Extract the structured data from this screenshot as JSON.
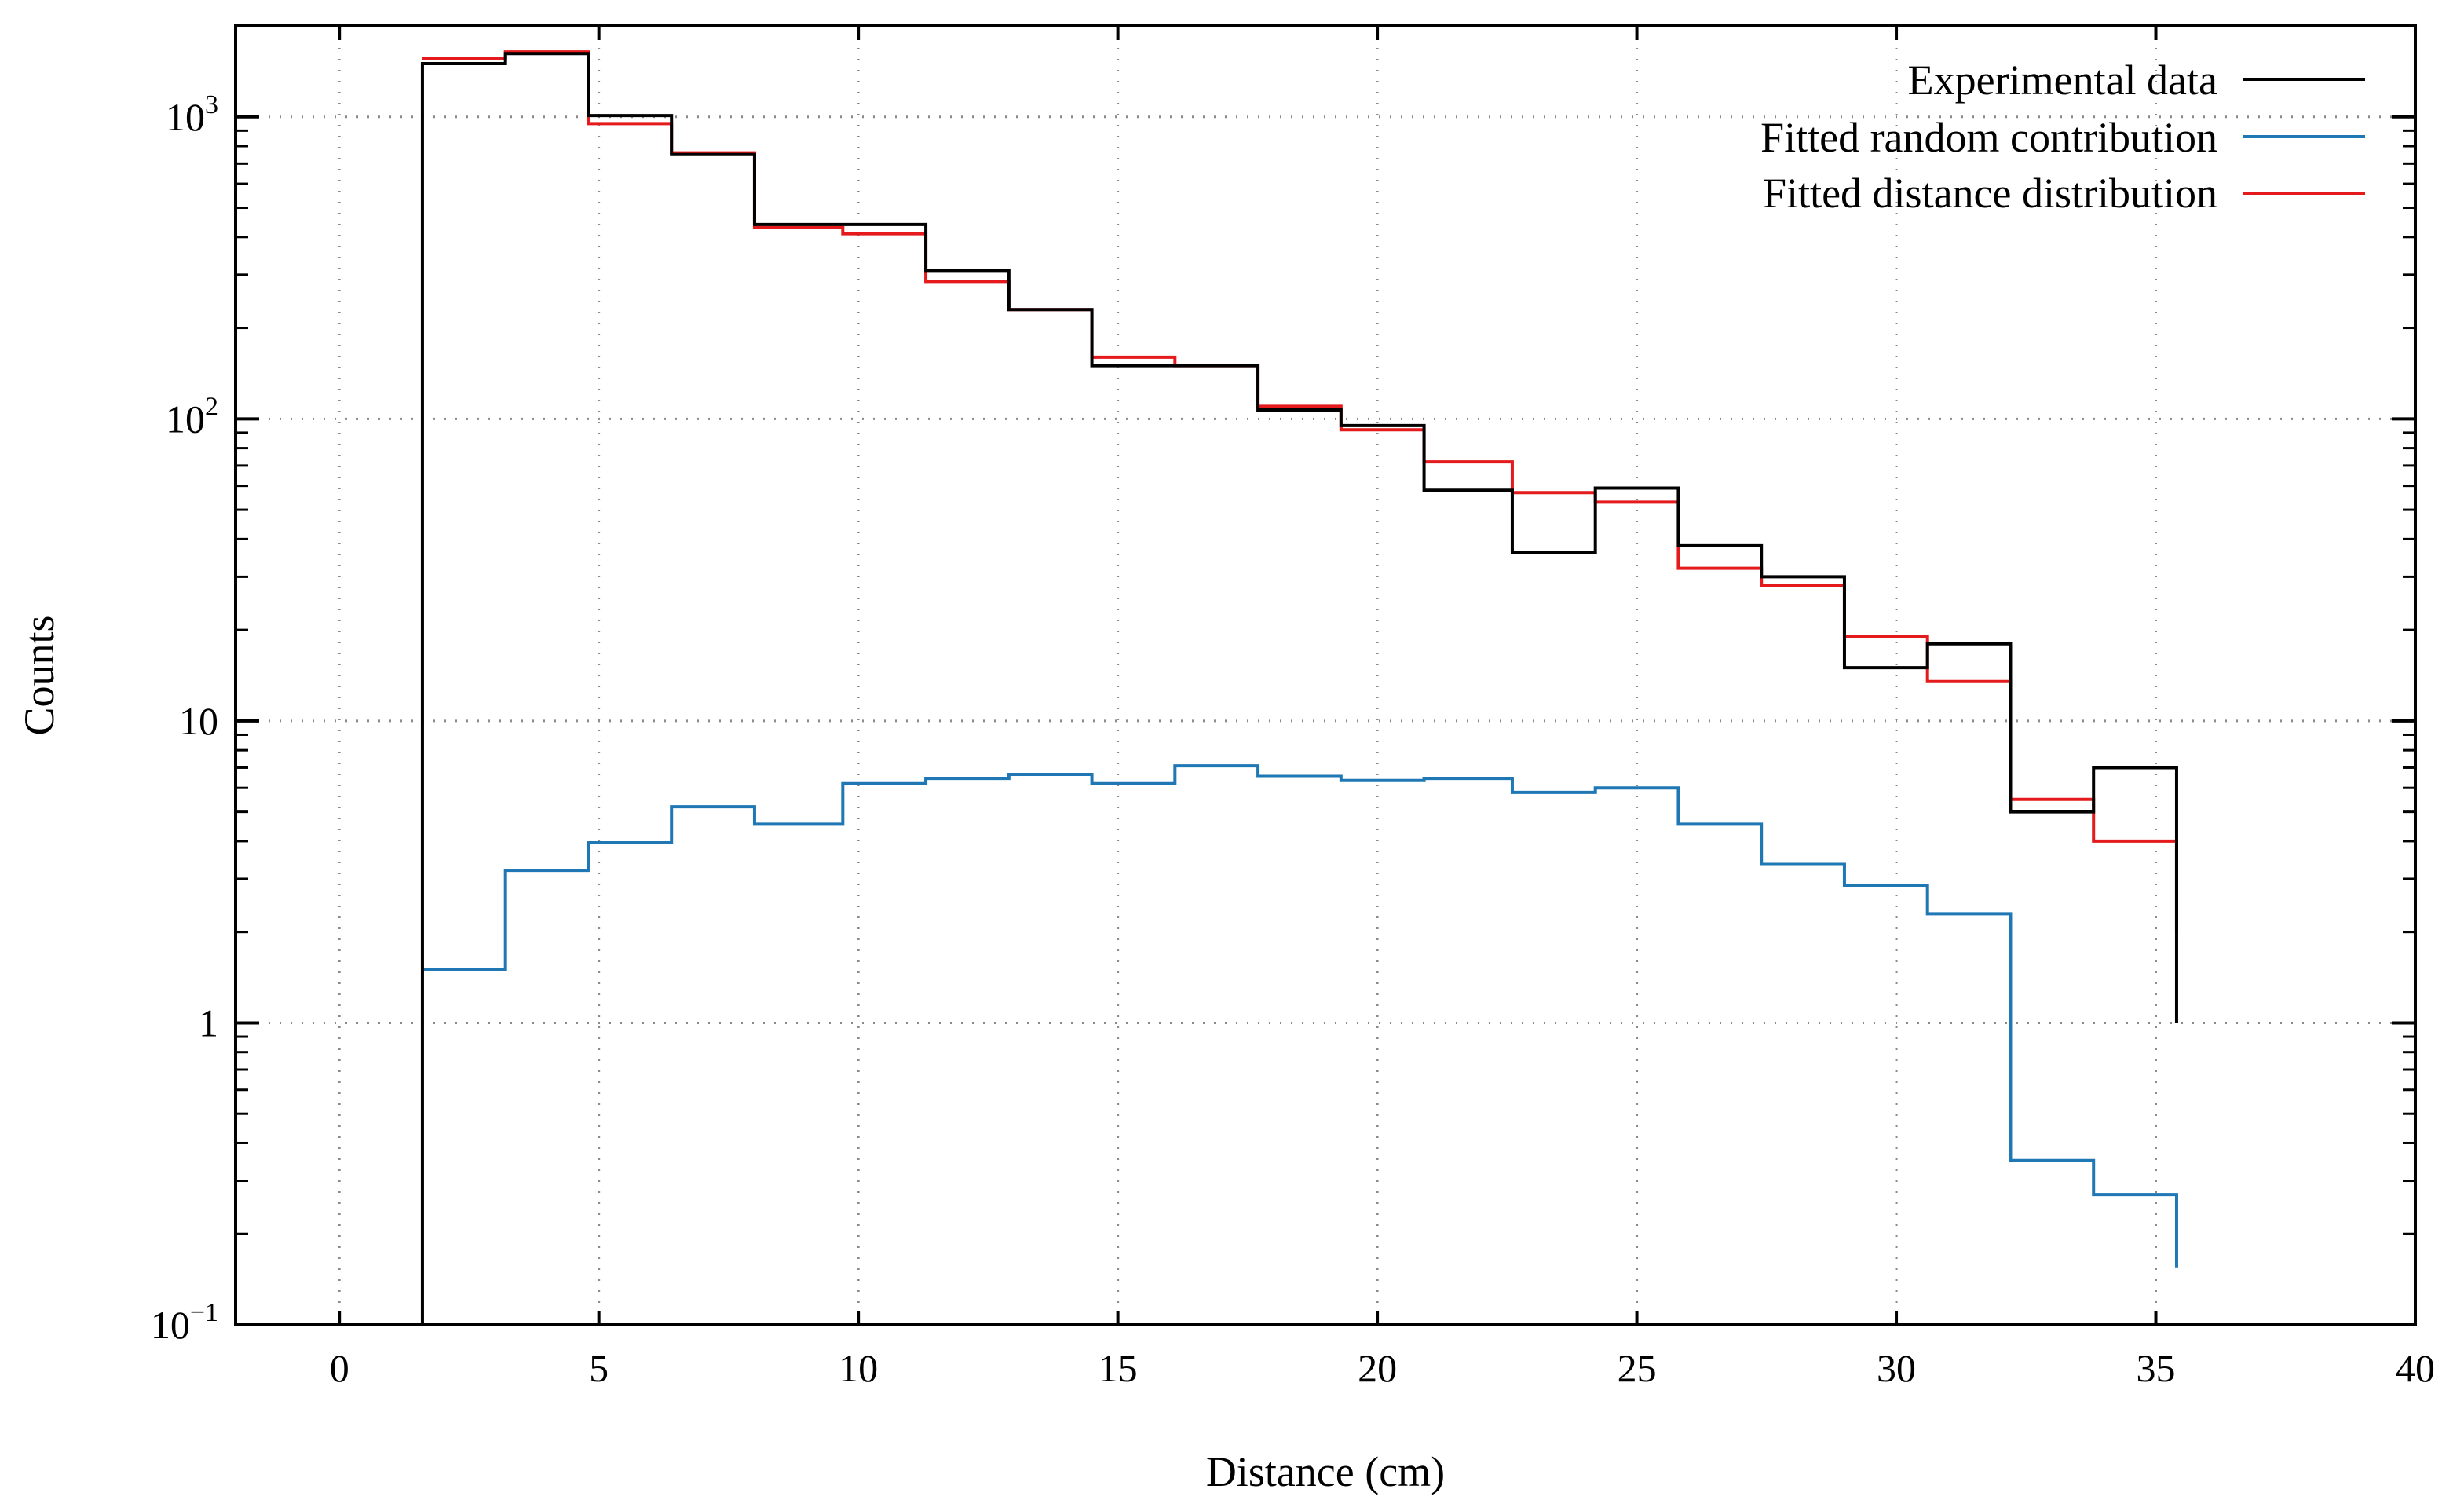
{
  "chart_data": {
    "type": "line",
    "step": true,
    "xlabel": "Distance (cm)",
    "ylabel": "Counts",
    "xscale": "linear",
    "yscale": "log",
    "xlim": [
      -2,
      40
    ],
    "ylim": [
      0.1,
      2000
    ],
    "xticks": [
      0,
      5,
      10,
      15,
      20,
      25,
      30,
      35,
      40
    ],
    "xtick_labels": [
      "0",
      "5",
      "10",
      "15",
      "20",
      "25",
      "30",
      "35",
      "40"
    ],
    "yticks": [
      0.1,
      1,
      10,
      100,
      1000
    ],
    "ytick_labels": [
      {
        "base": "10",
        "sup": "−1"
      },
      {
        "base": "1",
        "sup": ""
      },
      {
        "base": "10",
        "sup": ""
      },
      {
        "base": "10",
        "sup": "2"
      },
      {
        "base": "10",
        "sup": "3"
      }
    ],
    "grid": true,
    "legend_position": "top-right",
    "bin_edges": [
      1.6,
      3.2,
      4.8,
      6.4,
      8.0,
      9.7,
      11.3,
      12.9,
      14.5,
      16.1,
      17.7,
      19.3,
      20.9,
      22.6,
      24.2,
      25.8,
      27.4,
      29.0,
      30.6,
      32.2,
      33.8,
      35.4
    ],
    "series": [
      {
        "name": "Experimental data",
        "color": "#000000",
        "start_value": 0.1,
        "end_value": 1,
        "values": [
          1500,
          1620,
          1010,
          750,
          440,
          440,
          310,
          230,
          150,
          150,
          107,
          95,
          58,
          36,
          59,
          38,
          30,
          15,
          18,
          5,
          7
        ]
      },
      {
        "name": "Fitted random contribution",
        "color": "#1f77b4",
        "start_value": null,
        "end_value": 0.155,
        "values": [
          1.5,
          3.2,
          3.95,
          5.2,
          4.55,
          6.2,
          6.45,
          6.65,
          6.2,
          7.1,
          6.55,
          6.35,
          6.45,
          5.8,
          6.0,
          4.55,
          3.35,
          2.85,
          2.3,
          0.35,
          0.27
        ]
      },
      {
        "name": "Fitted distance distribution",
        "color": "#e41a1c",
        "start_value": null,
        "end_value": 2,
        "values": [
          1560,
          1640,
          950,
          760,
          430,
          410,
          285,
          230,
          160,
          150,
          110,
          92,
          72,
          57,
          53,
          32,
          28,
          19,
          13.5,
          5.5,
          4
        ]
      }
    ]
  }
}
